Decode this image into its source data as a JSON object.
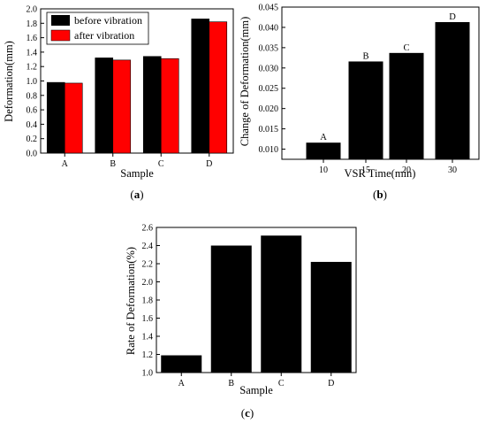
{
  "chart_data": [
    {
      "id": "a",
      "type": "bar",
      "categories": [
        "A",
        "B",
        "C",
        "D"
      ],
      "series": [
        {
          "name": "before vibration",
          "values": [
            0.98,
            1.32,
            1.34,
            1.86
          ],
          "color": "#000000"
        },
        {
          "name": "after vibration",
          "values": [
            0.97,
            1.29,
            1.31,
            1.82
          ],
          "color": "#ff0000"
        }
      ],
      "xlabel": "Sample",
      "ylabel": "Deformation(mm)",
      "ylim": [
        0,
        2.0
      ],
      "yticks": [
        "0.0",
        "0.2",
        "0.4",
        "0.6",
        "0.8",
        "1.0",
        "1.2",
        "1.4",
        "1.6",
        "1.8",
        "2.0"
      ],
      "legend": "top-left",
      "grid": false,
      "caption_open": "(",
      "caption_letter": "a",
      "caption_close": ")"
    },
    {
      "id": "b",
      "type": "bar",
      "categories": [
        "10",
        "15",
        "20",
        "30"
      ],
      "values": [
        0.0116,
        0.0316,
        0.0337,
        0.0413
      ],
      "bar_labels": [
        "A",
        "B",
        "C",
        "D"
      ],
      "xlabel": "VSR Time(min)",
      "ylabel": "Change of Deformation(mm)",
      "ylim": [
        0.0075,
        0.045
      ],
      "yticks": [
        "0.010",
        "0.015",
        "0.020",
        "0.025",
        "0.030",
        "0.035",
        "0.040",
        "0.045"
      ],
      "grid": false,
      "caption_open": "(",
      "caption_letter": "b",
      "caption_close": ")"
    },
    {
      "id": "c",
      "type": "bar",
      "categories": [
        "A",
        "B",
        "C",
        "D"
      ],
      "values": [
        1.19,
        2.4,
        2.51,
        2.22
      ],
      "xlabel": "Sample",
      "ylabel": "Rate of Deformation(%)",
      "ylim": [
        1.0,
        2.6
      ],
      "yticks": [
        "1.0",
        "1.2",
        "1.4",
        "1.6",
        "1.8",
        "2.0",
        "2.2",
        "2.4",
        "2.6"
      ],
      "grid": false,
      "caption_open": "(",
      "caption_letter": "c",
      "caption_close": ")"
    }
  ],
  "colors": {
    "axis": "#000000",
    "bar_black": "#000000",
    "bar_red": "#ff0000"
  }
}
